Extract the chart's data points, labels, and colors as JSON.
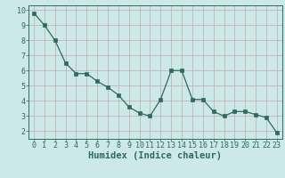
{
  "x": [
    0,
    1,
    2,
    3,
    4,
    5,
    6,
    7,
    8,
    9,
    10,
    11,
    12,
    13,
    14,
    15,
    16,
    17,
    18,
    19,
    20,
    21,
    22,
    23
  ],
  "y": [
    9.8,
    9.0,
    8.0,
    6.5,
    5.8,
    5.8,
    5.3,
    4.9,
    4.4,
    3.6,
    3.2,
    3.0,
    4.1,
    6.0,
    6.0,
    4.1,
    4.1,
    3.3,
    3.0,
    3.3,
    3.3,
    3.1,
    2.9,
    1.9
  ],
  "xlabel": "Humidex (Indice chaleur)",
  "ylim": [
    1.5,
    10.3
  ],
  "xlim": [
    -0.5,
    23.5
  ],
  "yticks": [
    2,
    3,
    4,
    5,
    6,
    7,
    8,
    9,
    10
  ],
  "xtick_labels": [
    "0",
    "1",
    "2",
    "3",
    "4",
    "5",
    "6",
    "7",
    "8",
    "9",
    "10",
    "11",
    "12",
    "13",
    "14",
    "15",
    "16",
    "17",
    "18",
    "19",
    "20",
    "21",
    "22",
    "23"
  ],
  "line_color": "#2d6b5e",
  "marker_color": "#2d6b5e",
  "bg_color": "#cde8e8",
  "grid_color": "#c4a8a8",
  "axis_bg": "#cde8e8",
  "tick_label_color": "#2d6b5e",
  "xlabel_color": "#2d6b5e",
  "xlabel_fontsize": 7.5,
  "tick_fontsize": 6.0
}
